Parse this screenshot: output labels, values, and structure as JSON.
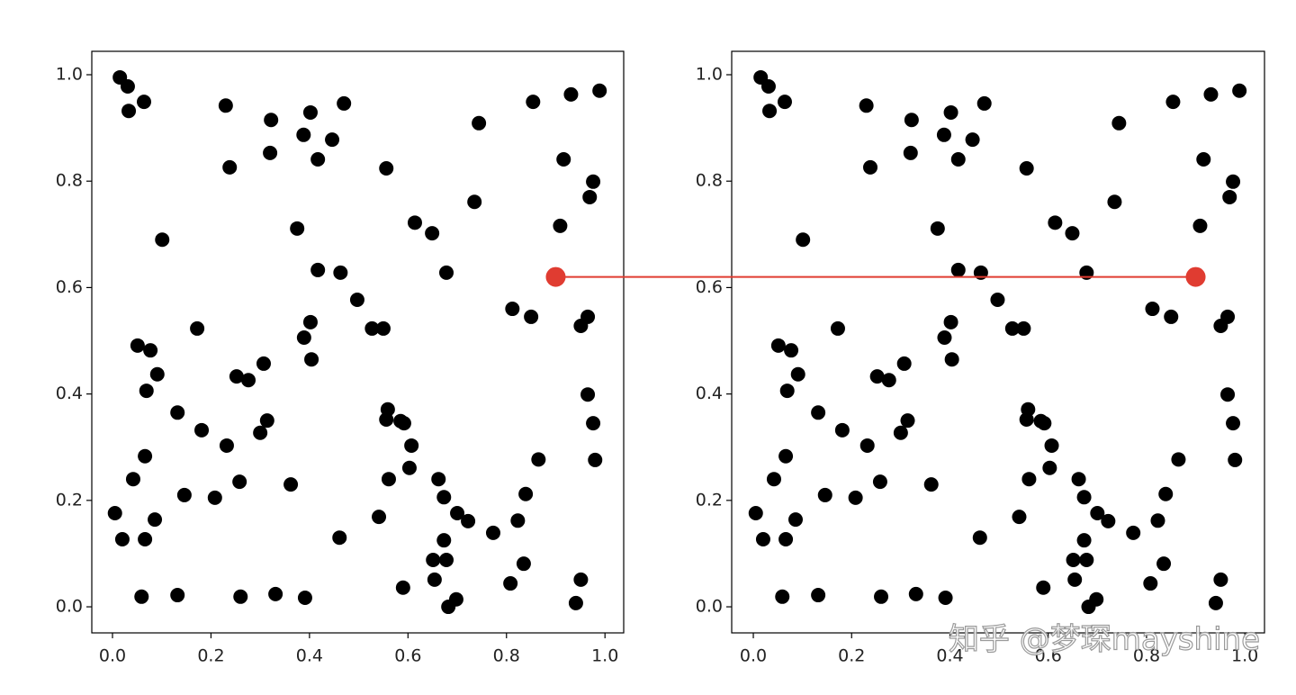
{
  "chart_data": [
    {
      "type": "scatter",
      "color": "#000000",
      "x": [
        0.015,
        0.031,
        0.033,
        0.064,
        0.23,
        0.238,
        0.322,
        0.32,
        0.388,
        0.402,
        0.417,
        0.446,
        0.47,
        0.101,
        0.375,
        0.417,
        0.463,
        0.497,
        0.402,
        0.389,
        0.404,
        0.527,
        0.55,
        0.556,
        0.614,
        0.649,
        0.678,
        0.735,
        0.744,
        0.854,
        0.931,
        0.989,
        0.916,
        0.976,
        0.969,
        0.909,
        0.812,
        0.85,
        0.965,
        0.951,
        0.965,
        0.976,
        0.98,
        0.865,
        0.839,
        0.823,
        0.835,
        0.808,
        0.773,
        0.722,
        0.7,
        0.673,
        0.662,
        0.673,
        0.651,
        0.678,
        0.654,
        0.698,
        0.682,
        0.59,
        0.541,
        0.461,
        0.561,
        0.603,
        0.607,
        0.592,
        0.559,
        0.556,
        0.585,
        0.362,
        0.314,
        0.3,
        0.307,
        0.276,
        0.252,
        0.172,
        0.051,
        0.077,
        0.091,
        0.069,
        0.132,
        0.181,
        0.232,
        0.258,
        0.208,
        0.146,
        0.066,
        0.042,
        0.086,
        0.005,
        0.02,
        0.066,
        0.059,
        0.132,
        0.26,
        0.331,
        0.391,
        0.941,
        0.951
      ],
      "y": [
        0.995,
        0.978,
        0.932,
        0.949,
        0.942,
        0.826,
        0.915,
        0.853,
        0.887,
        0.929,
        0.841,
        0.878,
        0.946,
        0.69,
        0.711,
        0.633,
        0.628,
        0.577,
        0.535,
        0.506,
        0.465,
        0.523,
        0.523,
        0.824,
        0.722,
        0.702,
        0.628,
        0.761,
        0.909,
        0.949,
        0.963,
        0.97,
        0.841,
        0.799,
        0.77,
        0.716,
        0.56,
        0.545,
        0.545,
        0.528,
        0.399,
        0.345,
        0.276,
        0.277,
        0.212,
        0.162,
        0.081,
        0.044,
        0.139,
        0.161,
        0.176,
        0.206,
        0.24,
        0.125,
        0.088,
        0.088,
        0.051,
        0.014,
        0,
        0.036,
        0.169,
        0.13,
        0.24,
        0.261,
        0.303,
        0.345,
        0.371,
        0.352,
        0.349,
        0.23,
        0.35,
        0.327,
        0.457,
        0.426,
        0.433,
        0.523,
        0.491,
        0.482,
        0.437,
        0.406,
        0.365,
        0.332,
        0.303,
        0.235,
        0.205,
        0.21,
        0.283,
        0.24,
        0.164,
        0.176,
        0.127,
        0.127,
        0.019,
        0.022,
        0.019,
        0.024,
        0.017,
        0.007,
        0.051
      ],
      "xlim": [
        -0.042,
        1.038
      ],
      "ylim": [
        -0.049,
        1.044
      ],
      "xticks": [
        {
          "value": 0,
          "label": "0.0"
        },
        {
          "value": 0.2,
          "label": "0.2"
        },
        {
          "value": 0.4,
          "label": "0.4"
        },
        {
          "value": 0.6,
          "label": "0.6"
        },
        {
          "value": 0.8,
          "label": "0.8"
        },
        {
          "value": 1,
          "label": "1.0"
        }
      ],
      "yticks": [
        {
          "value": 0,
          "label": "0.0"
        },
        {
          "value": 0.2,
          "label": "0.2"
        },
        {
          "value": 0.4,
          "label": "0.4"
        },
        {
          "value": 0.6,
          "label": "0.6"
        },
        {
          "value": 0.8,
          "label": "0.8"
        },
        {
          "value": 1,
          "label": "1.0"
        }
      ],
      "connection_point": [
        0.9,
        0.62
      ]
    },
    {
      "type": "scatter",
      "color": "#000000",
      "x": [
        0.015,
        0.031,
        0.033,
        0.064,
        0.23,
        0.238,
        0.322,
        0.32,
        0.388,
        0.402,
        0.417,
        0.446,
        0.47,
        0.101,
        0.375,
        0.417,
        0.463,
        0.497,
        0.402,
        0.389,
        0.404,
        0.527,
        0.55,
        0.556,
        0.614,
        0.649,
        0.678,
        0.735,
        0.744,
        0.854,
        0.931,
        0.989,
        0.916,
        0.976,
        0.969,
        0.909,
        0.812,
        0.85,
        0.965,
        0.951,
        0.965,
        0.976,
        0.98,
        0.865,
        0.839,
        0.823,
        0.835,
        0.808,
        0.773,
        0.722,
        0.7,
        0.673,
        0.662,
        0.673,
        0.651,
        0.678,
        0.654,
        0.698,
        0.682,
        0.59,
        0.541,
        0.461,
        0.561,
        0.603,
        0.607,
        0.592,
        0.559,
        0.556,
        0.585,
        0.362,
        0.314,
        0.3,
        0.307,
        0.276,
        0.252,
        0.172,
        0.051,
        0.077,
        0.091,
        0.069,
        0.132,
        0.181,
        0.232,
        0.258,
        0.208,
        0.146,
        0.066,
        0.042,
        0.086,
        0.005,
        0.02,
        0.066,
        0.059,
        0.132,
        0.26,
        0.331,
        0.391,
        0.941,
        0.951
      ],
      "y": [
        0.995,
        0.978,
        0.932,
        0.949,
        0.942,
        0.826,
        0.915,
        0.853,
        0.887,
        0.929,
        0.841,
        0.878,
        0.946,
        0.69,
        0.711,
        0.633,
        0.628,
        0.577,
        0.535,
        0.506,
        0.465,
        0.523,
        0.523,
        0.824,
        0.722,
        0.702,
        0.628,
        0.761,
        0.909,
        0.949,
        0.963,
        0.97,
        0.841,
        0.799,
        0.77,
        0.716,
        0.56,
        0.545,
        0.545,
        0.528,
        0.399,
        0.345,
        0.276,
        0.277,
        0.212,
        0.162,
        0.081,
        0.044,
        0.139,
        0.161,
        0.176,
        0.206,
        0.24,
        0.125,
        0.088,
        0.088,
        0.051,
        0.014,
        0,
        0.036,
        0.169,
        0.13,
        0.24,
        0.261,
        0.303,
        0.345,
        0.371,
        0.352,
        0.349,
        0.23,
        0.35,
        0.327,
        0.457,
        0.426,
        0.433,
        0.523,
        0.491,
        0.482,
        0.437,
        0.406,
        0.365,
        0.332,
        0.303,
        0.235,
        0.205,
        0.21,
        0.283,
        0.24,
        0.164,
        0.176,
        0.127,
        0.127,
        0.019,
        0.022,
        0.019,
        0.024,
        0.017,
        0.007,
        0.051
      ],
      "xlim": [
        -0.044,
        1.04
      ],
      "ylim": [
        -0.049,
        1.044
      ],
      "xticks": [
        {
          "value": 0,
          "label": "0.0"
        },
        {
          "value": 0.2,
          "label": "0.2"
        },
        {
          "value": 0.4,
          "label": "0.4"
        },
        {
          "value": 0.6,
          "label": "0.6"
        },
        {
          "value": 0.8,
          "label": "0.8"
        },
        {
          "value": 1,
          "label": "1.0"
        }
      ],
      "yticks": [
        {
          "value": 0,
          "label": "0.0"
        },
        {
          "value": 0.2,
          "label": "0.2"
        },
        {
          "value": 0.4,
          "label": "0.4"
        },
        {
          "value": 0.6,
          "label": "0.6"
        },
        {
          "value": 0.8,
          "label": "0.8"
        },
        {
          "value": 1,
          "label": "1.0"
        }
      ],
      "connection_point": [
        0.9,
        0.62
      ]
    }
  ],
  "connection_color": "#e03c31",
  "watermark": "知乎 @梦琛mayshine"
}
